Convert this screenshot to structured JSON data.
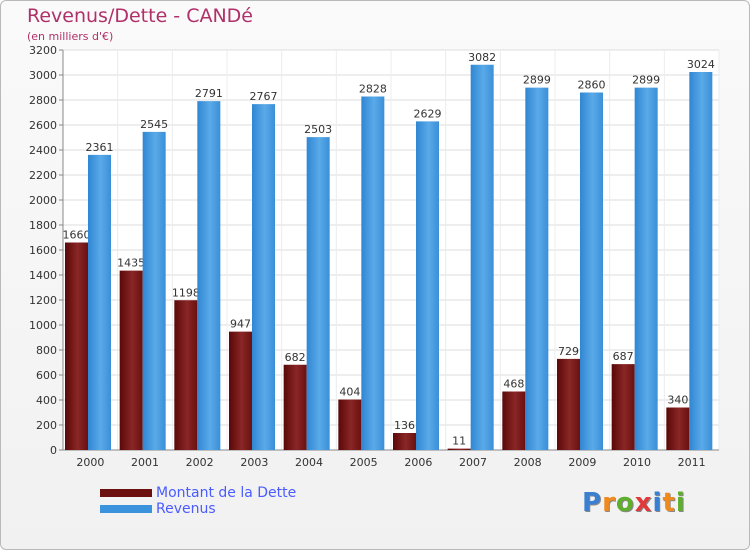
{
  "chart_data": {
    "type": "bar",
    "title": "Revenus/Dette - CANDé",
    "subtitle": "(en milliers d'€)",
    "categories": [
      "2000",
      "2001",
      "2002",
      "2003",
      "2004",
      "2005",
      "2006",
      "2007",
      "2008",
      "2009",
      "2010",
      "2011"
    ],
    "series": [
      {
        "name": "Montant de la Dette",
        "color": "#7a1818",
        "values": [
          1660,
          1435,
          1198,
          947,
          682,
          404,
          136,
          11,
          468,
          729,
          687,
          340
        ]
      },
      {
        "name": "Revenus",
        "color": "#3b93dd",
        "values": [
          2361,
          2545,
          2791,
          2767,
          2503,
          2828,
          2629,
          3082,
          2899,
          2860,
          2899,
          3024
        ]
      }
    ],
    "ylim": [
      0,
      3200
    ],
    "yticks": [
      0,
      200,
      400,
      600,
      800,
      1000,
      1200,
      1400,
      1600,
      1800,
      2000,
      2200,
      2400,
      2600,
      2800,
      3000,
      3200
    ],
    "grid": true,
    "legend_position": "bottom-left"
  },
  "legend": {
    "debt_label": "Montant de la Dette",
    "revenue_label": "Revenus"
  },
  "logo": {
    "letters": [
      "P",
      "r",
      "o",
      "x",
      "i",
      "t",
      "i"
    ],
    "colors": [
      "#3a7fd0",
      "#f08a1c",
      "#5fae2e",
      "#e03a3a",
      "#3a7fd0",
      "#f08a1c",
      "#5fae2e"
    ]
  }
}
